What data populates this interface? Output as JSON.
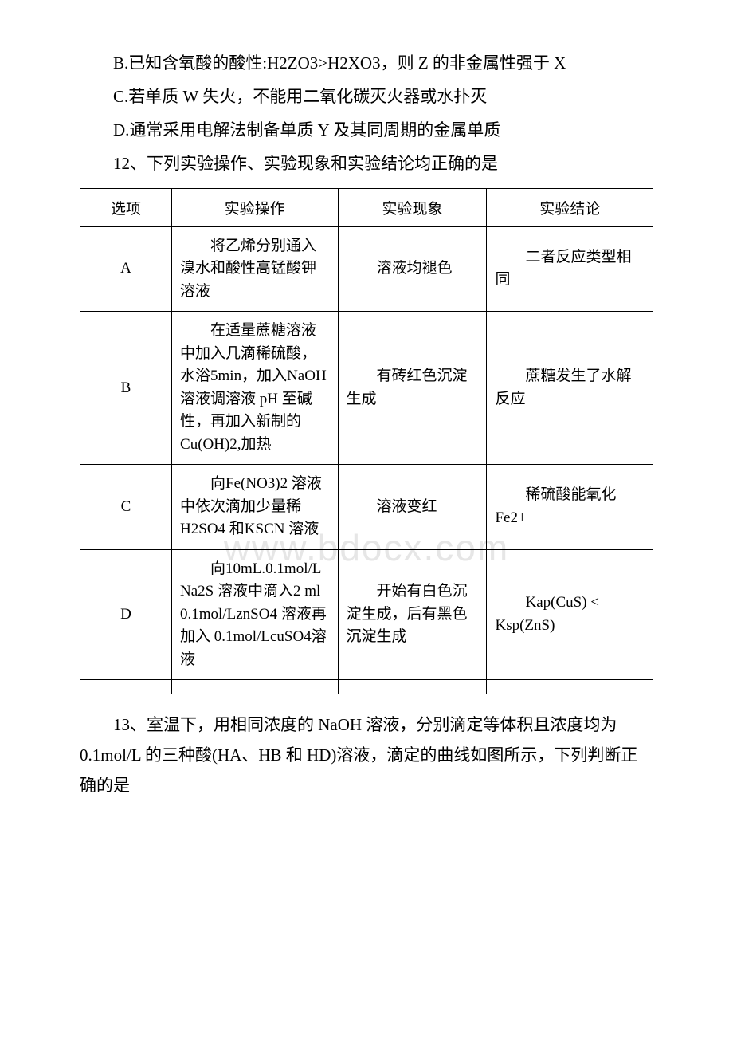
{
  "watermark": "www.bdocx.com",
  "options": {
    "B": "B.已知含氧酸的酸性:H2ZO3>H2XO3，则 Z 的非金属性强于 X",
    "C": "C.若单质 W 失火，不能用二氧化碳灭火器或水扑灭",
    "D": "D.通常采用电解法制备单质 Y 及其同周期的金属单质"
  },
  "q12": "12、下列实验操作、实验现象和实验结论均正确的是",
  "table": {
    "headers": {
      "c1": "选项",
      "c2": "实验操作",
      "c3": "实验现象",
      "c4": "实验结论"
    },
    "rows": [
      {
        "opt": "A",
        "op": "将乙烯分别通入溴水和酸性高锰酸钾溶液",
        "phen": "溶液均褪色",
        "conc": "二者反应类型相同"
      },
      {
        "opt": "B",
        "op": "在适量蔗糖溶液中加入几滴稀硫酸，水浴5min，加入NaOH 溶液调溶液 pH 至碱性，再加入新制的Cu(OH)2,加热",
        "phen": "有砖红色沉淀生成",
        "conc": "蔗糖发生了水解反应"
      },
      {
        "opt": "C",
        "op": "向Fe(NO3)2 溶液中依次滴加少量稀 H2SO4 和KSCN 溶液",
        "phen": "溶液变红",
        "conc": "稀硫酸能氧化 Fe2+"
      },
      {
        "opt": "D",
        "op": "向10mL.0.1mol/L Na2S 溶液中滴入2 ml 0.1mol/LznSO4 溶液再加入 0.1mol/LcuSO4溶液",
        "phen": "开始有白色沉淀生成，后有黑色沉淀生成",
        "conc": "Kap(CuS) < Ksp(ZnS)"
      }
    ]
  },
  "q13": "13、室温下，用相同浓度的 NaOH 溶液，分别滴定等体积且浓度均为 0.1mol/L 的三种酸(HA、HB 和 HD)溶液，滴定的曲线如图所示，下列判断正确的是"
}
